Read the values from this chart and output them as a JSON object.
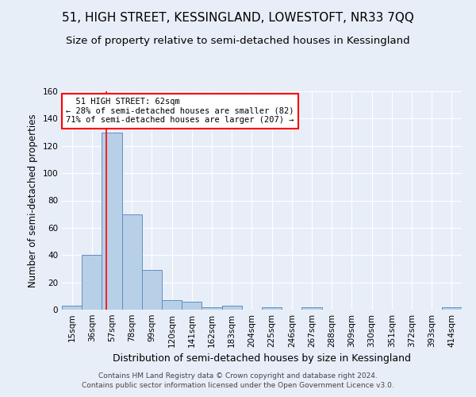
{
  "title1": "51, HIGH STREET, KESSINGLAND, LOWESTOFT, NR33 7QQ",
  "title2": "Size of property relative to semi-detached houses in Kessingland",
  "xlabel": "Distribution of semi-detached houses by size in Kessingland",
  "ylabel": "Number of semi-detached properties",
  "footer": "Contains HM Land Registry data © Crown copyright and database right 2024.\nContains public sector information licensed under the Open Government Licence v3.0.",
  "bin_edges": [
    15,
    36,
    57,
    78,
    99,
    120,
    141,
    162,
    183,
    204,
    225,
    246,
    267,
    288,
    309,
    330,
    351,
    372,
    393,
    414,
    435
  ],
  "bar_heights": [
    3,
    40,
    130,
    70,
    29,
    7,
    6,
    2,
    3,
    0,
    2,
    0,
    2,
    0,
    0,
    0,
    0,
    0,
    0,
    2
  ],
  "bar_color": "#b8cfe8",
  "bar_edge_color": "#6090c0",
  "red_line_x": 62,
  "annotation_text": "  51 HIGH STREET: 62sqm\n← 28% of semi-detached houses are smaller (82)\n71% of semi-detached houses are larger (207) →",
  "annotation_box_color": "white",
  "annotation_box_edge_color": "red",
  "ylim": [
    0,
    160
  ],
  "yticks": [
    0,
    20,
    40,
    60,
    80,
    100,
    120,
    140,
    160
  ],
  "title1_fontsize": 11,
  "title2_fontsize": 9.5,
  "xlabel_fontsize": 9,
  "ylabel_fontsize": 8.5,
  "tick_fontsize": 7.5,
  "annotation_fontsize": 7.5,
  "background_color": "#e8eef8",
  "plot_background_color": "#e8eef8",
  "grid_color": "#ffffff",
  "footer_color": "#444444",
  "footer_fontsize": 6.5
}
